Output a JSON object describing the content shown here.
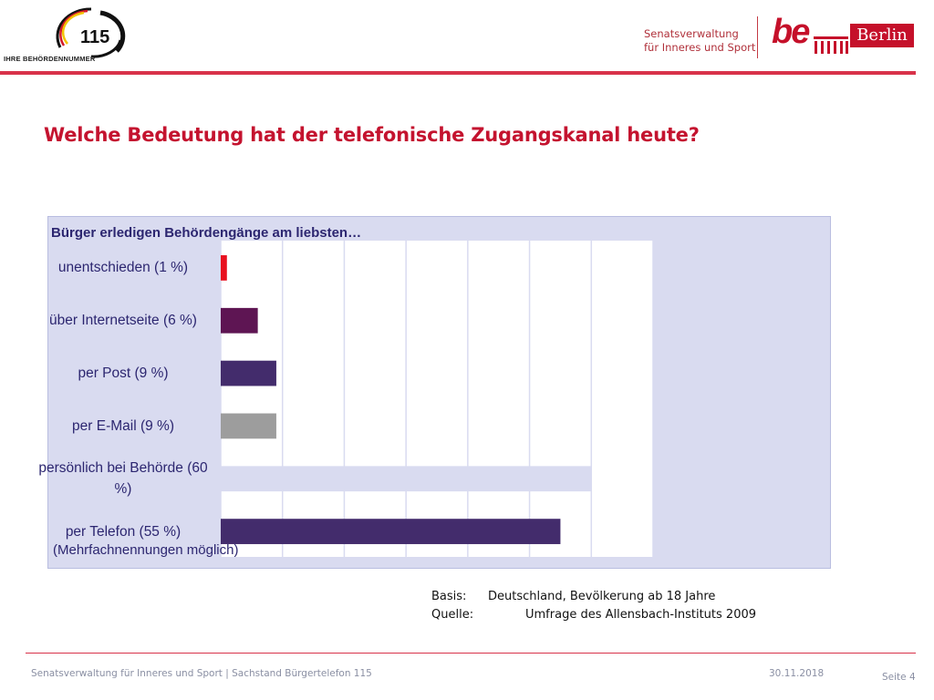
{
  "header": {
    "logo_number": "115",
    "logo_caption": "IHRE BEHÖRDENNUMMER",
    "org_line1": "Senatsverwaltung",
    "org_line2": "für Inneres und Sport",
    "berlin_mark": "be",
    "berlin_label": "Berlin",
    "colors": {
      "brand_red": "#c5102a",
      "bar_red": "#d8324a"
    }
  },
  "title": "Welche Bedeutung hat der telefonische Zugangskanal heute?",
  "chart_data": {
    "type": "bar",
    "orientation": "horizontal",
    "title": "Bürger erledigen Behördengänge am liebsten…",
    "note": "(Mehrfachnennungen möglich)",
    "categories": [
      "unentschieden (1 %)",
      "über Internetseite (6 %)",
      "per Post (9 %)",
      "per E-Mail (9 %)",
      "persönlich bei Behörde (60 %)",
      "per Telefon (55 %)"
    ],
    "values": [
      1,
      6,
      9,
      9,
      60,
      55
    ],
    "colors": [
      "#e8101f",
      "#5e1553",
      "#432c6c",
      "#9d9d9d",
      "#d9dbf0",
      "#432c6c"
    ],
    "xlim": [
      0,
      70
    ],
    "grid": true,
    "legend": "none",
    "background": "#d9dbf0",
    "plot_background": "#ffffff"
  },
  "source": {
    "basis_key": "Basis:",
    "basis_value": "Deutschland, Bevölkerung ab 18 Jahre",
    "quelle_key": "Quelle:",
    "quelle_value": "Umfrage des Allensbach-Instituts 2009"
  },
  "footer": {
    "left": "Senatsverwaltung für Inneres und Sport | Sachstand Bürgertelefon 115",
    "date": "30.11.2018",
    "page": "Seite 4"
  }
}
